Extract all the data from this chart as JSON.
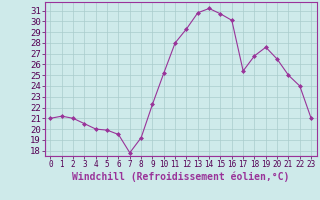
{
  "x": [
    0,
    1,
    2,
    3,
    4,
    5,
    6,
    7,
    8,
    9,
    10,
    11,
    12,
    13,
    14,
    15,
    16,
    17,
    18,
    19,
    20,
    21,
    22,
    23
  ],
  "y": [
    21,
    21.2,
    21,
    20.5,
    20,
    19.9,
    19.5,
    17.8,
    19.2,
    22.3,
    25.2,
    28,
    29.3,
    30.8,
    31.2,
    30.7,
    30.1,
    25.4,
    26.8,
    27.6,
    26.5,
    25,
    24,
    21
  ],
  "line_color": "#993399",
  "marker": "D",
  "marker_size": 2,
  "bg_color": "#ceeaea",
  "grid_color": "#aacccc",
  "xlabel": "Windchill (Refroidissement éolien,°C)",
  "xlabel_fontsize": 7,
  "ylabel_ticks": [
    18,
    19,
    20,
    21,
    22,
    23,
    24,
    25,
    26,
    27,
    28,
    29,
    30,
    31
  ],
  "ylim": [
    17.5,
    31.8
  ],
  "xlim": [
    -0.5,
    23.5
  ],
  "ytick_fontsize": 6.5,
  "xtick_fontsize": 5.5,
  "axis_bg": "#ceeaea"
}
